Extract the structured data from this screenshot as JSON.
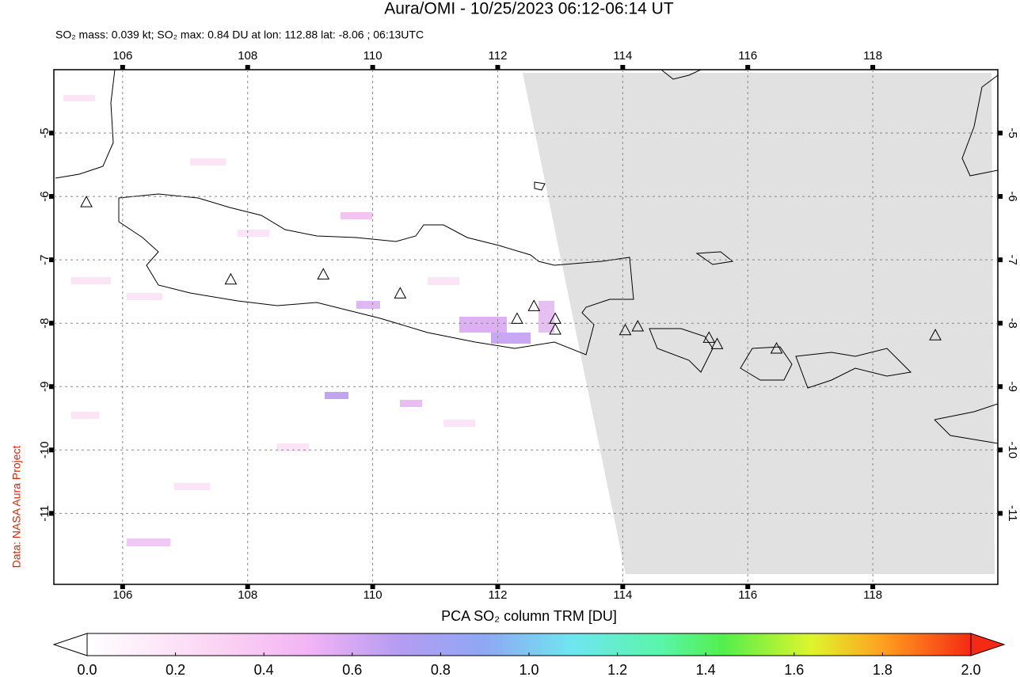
{
  "chart_data": {
    "type": "map",
    "title": "Aura/OMI - 10/25/2023 06:12-06:14 UT",
    "subtitle": "SO₂ mass: 0.039 kt; SO₂ max: 0.84 DU at lon: 112.88 lat: -8.06 ; 06:13UTC",
    "credit": "Data: NASA Aura Project",
    "colorbar_label": "PCA SO₂ column TRM [DU]",
    "xlim": [
      104.9,
      120
    ],
    "ylim": [
      -12.12,
      -4
    ],
    "xticks": [
      106,
      108,
      110,
      112,
      114,
      116,
      118
    ],
    "yticks": [
      -5,
      -6,
      -7,
      -8,
      -9,
      -10,
      -11
    ],
    "grid": true,
    "volcanoes": {
      "lon": [
        105.42,
        107.73,
        109.21,
        110.44,
        112.31,
        112.58,
        112.92,
        112.92,
        114.04,
        114.24,
        115.38,
        115.51,
        116.46,
        119.0
      ],
      "lat": [
        -6.1,
        -7.32,
        -7.24,
        -7.54,
        -7.94,
        -7.74,
        -7.94,
        -8.11,
        -8.12,
        -8.06,
        -8.24,
        -8.34,
        -8.41,
        -8.2
      ]
    },
    "clim": [
      0,
      2
    ],
    "cticks": [
      {
        "value": 0,
        "label": "0.0"
      },
      {
        "value": 0.2,
        "label": "0.2"
      },
      {
        "value": 0.4,
        "label": "0.4"
      },
      {
        "value": 0.6,
        "label": "0.6"
      },
      {
        "value": 0.8,
        "label": "0.8"
      },
      {
        "value": 1,
        "label": "1.0"
      },
      {
        "value": 1.2,
        "label": "1.2"
      },
      {
        "value": 1.4,
        "label": "1.4"
      },
      {
        "value": 1.6,
        "label": "1.6"
      },
      {
        "value": 1.8,
        "label": "1.8"
      },
      {
        "value": 2,
        "label": "2.0"
      }
    ]
  }
}
